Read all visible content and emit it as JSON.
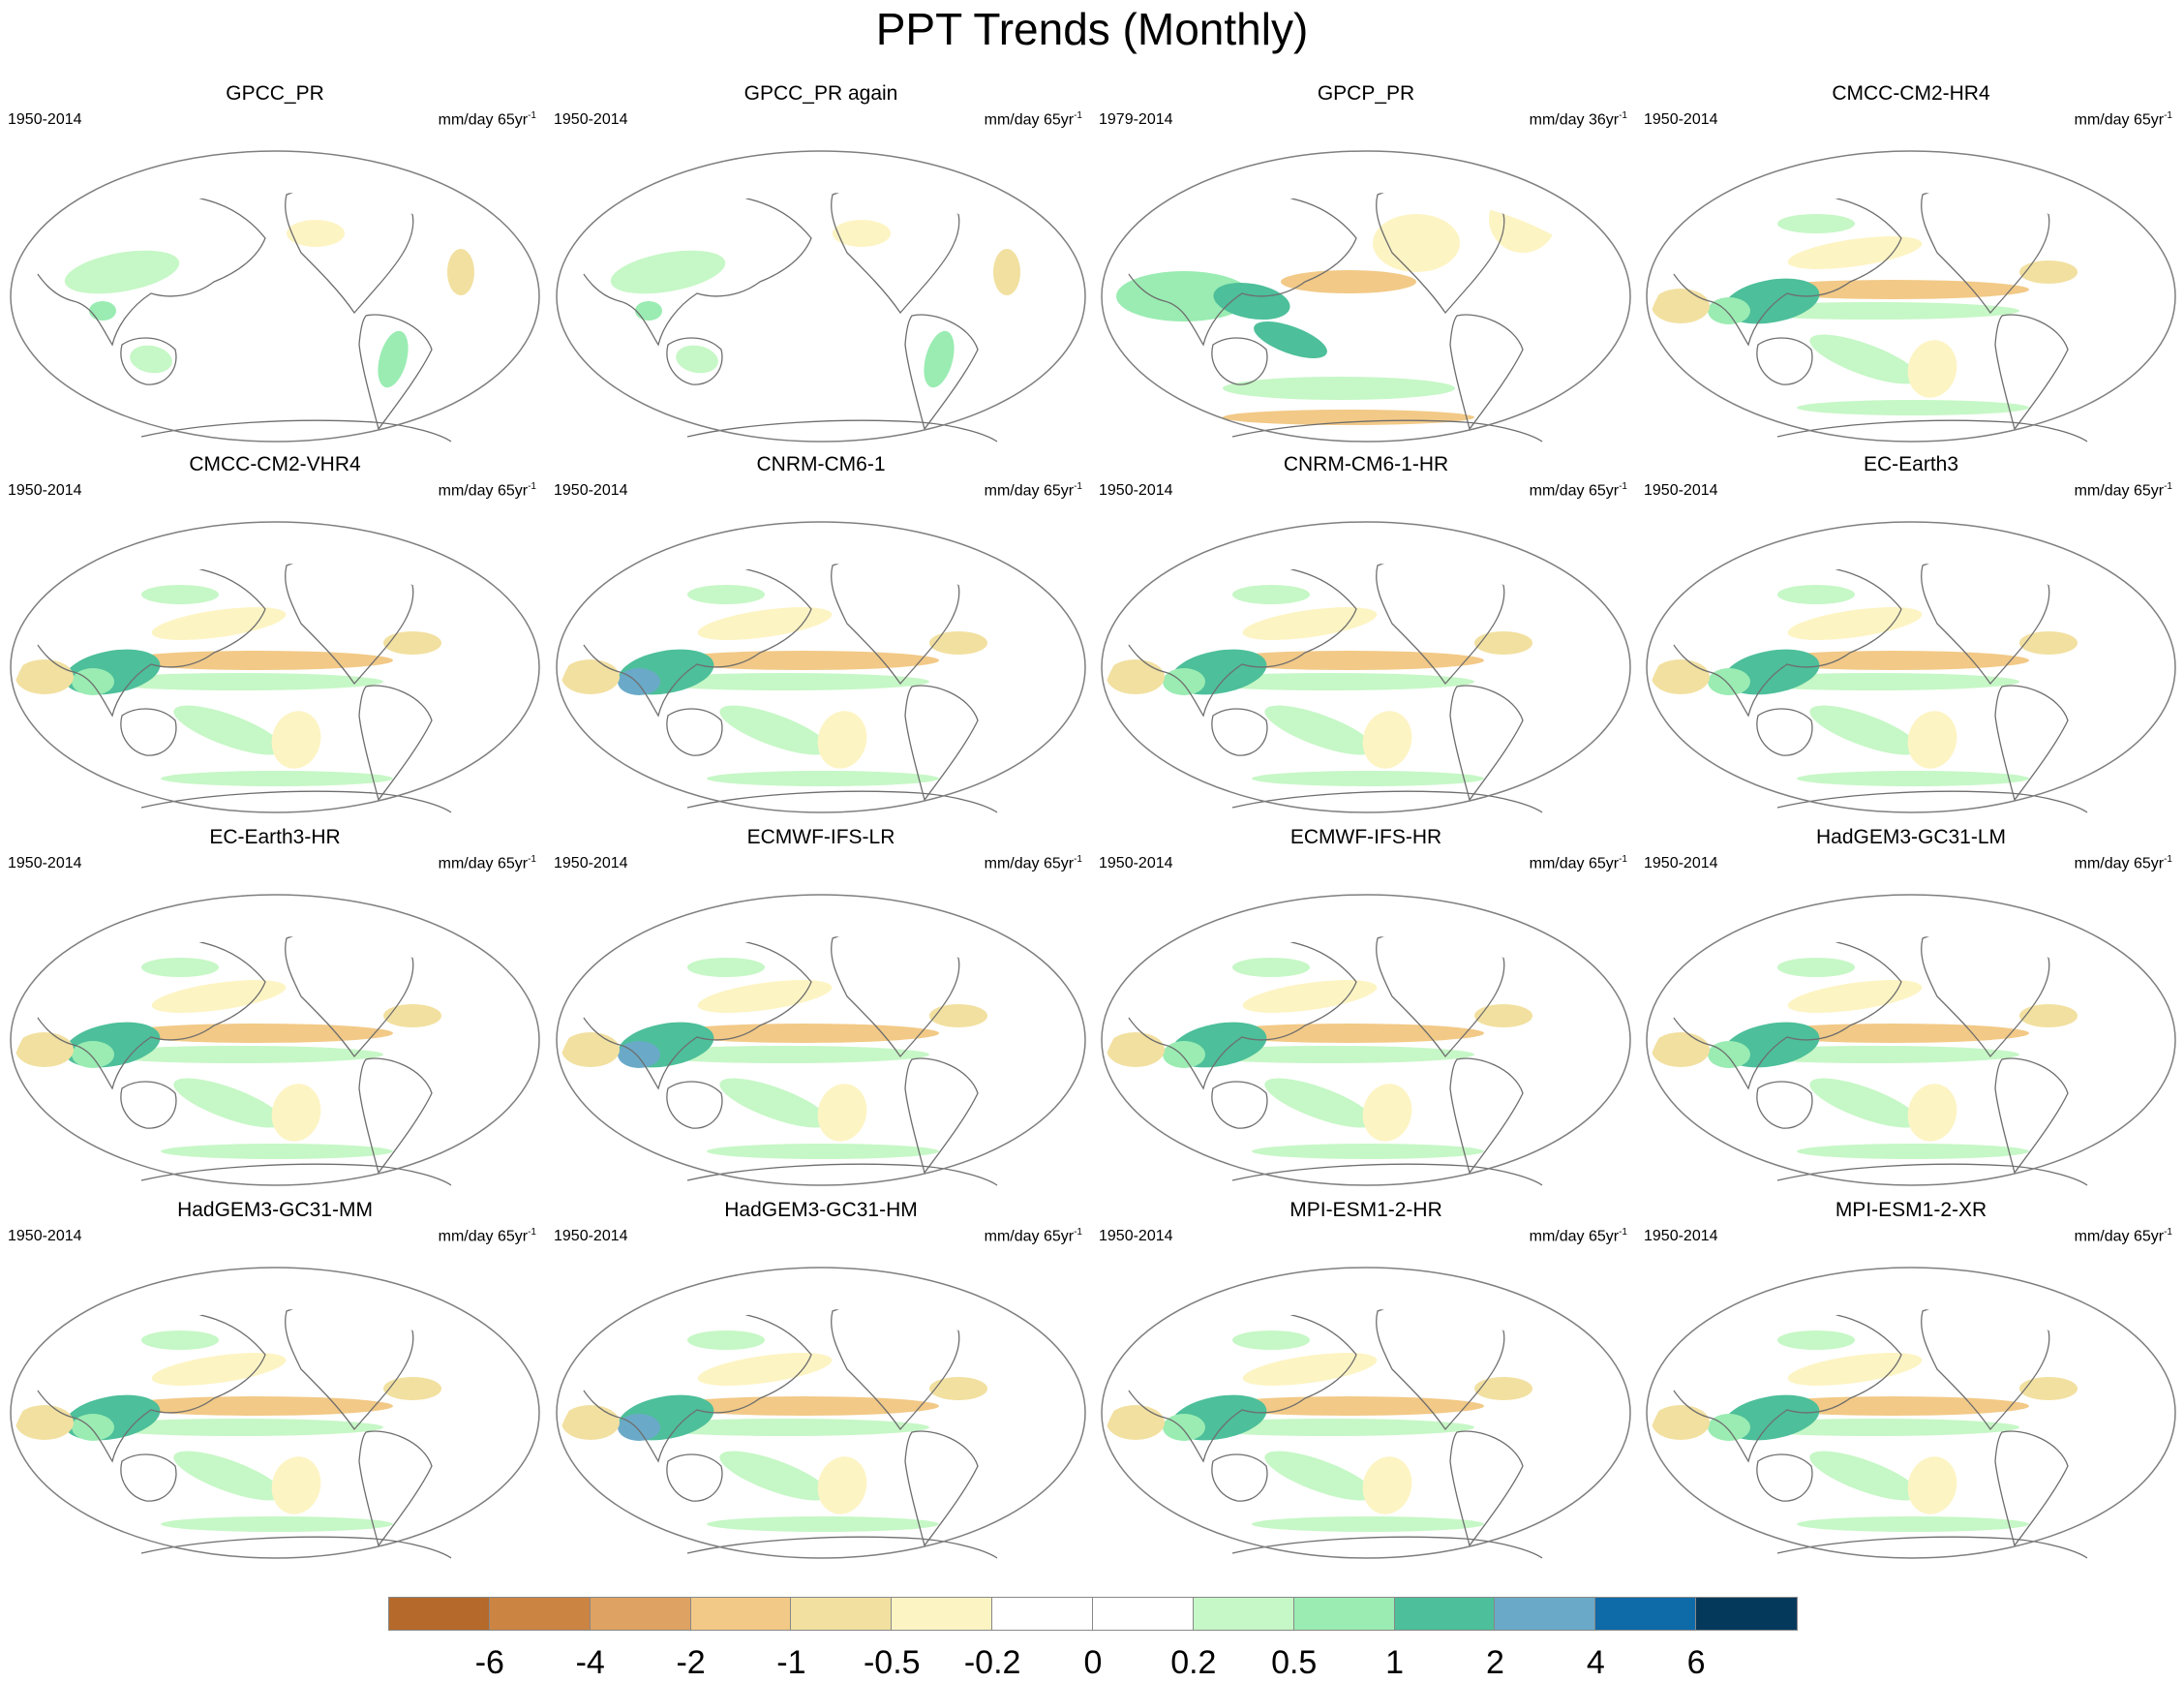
{
  "title": "PPT Trends (Monthly)",
  "panels": [
    {
      "title": "GPCC_PR",
      "period": "1950-2014",
      "units": "mm/day 65yr",
      "units_exp": "-1",
      "pattern": "land"
    },
    {
      "title": "GPCC_PR again",
      "period": "1950-2014",
      "units": "mm/day 65yr",
      "units_exp": "-1",
      "pattern": "land"
    },
    {
      "title": "GPCP_PR",
      "period": "1979-2014",
      "units": "mm/day 36yr",
      "units_exp": "-1",
      "pattern": "obs"
    },
    {
      "title": "CMCC-CM2-HR4",
      "period": "1950-2014",
      "units": "mm/day 65yr",
      "units_exp": "-1",
      "pattern": "model"
    },
    {
      "title": "CMCC-CM2-VHR4",
      "period": "1950-2014",
      "units": "mm/day 65yr",
      "units_exp": "-1",
      "pattern": "model"
    },
    {
      "title": "CNRM-CM6-1",
      "period": "1950-2014",
      "units": "mm/day 65yr",
      "units_exp": "-1",
      "pattern": "model"
    },
    {
      "title": "CNRM-CM6-1-HR",
      "period": "1950-2014",
      "units": "mm/day 65yr",
      "units_exp": "-1",
      "pattern": "model"
    },
    {
      "title": "EC-Earth3",
      "period": "1950-2014",
      "units": "mm/day 65yr",
      "units_exp": "-1",
      "pattern": "model"
    },
    {
      "title": "EC-Earth3-HR",
      "period": "1950-2014",
      "units": "mm/day 65yr",
      "units_exp": "-1",
      "pattern": "model"
    },
    {
      "title": "ECMWF-IFS-LR",
      "period": "1950-2014",
      "units": "mm/day 65yr",
      "units_exp": "-1",
      "pattern": "model"
    },
    {
      "title": "ECMWF-IFS-HR",
      "period": "1950-2014",
      "units": "mm/day 65yr",
      "units_exp": "-1",
      "pattern": "model"
    },
    {
      "title": "HadGEM3-GC31-LM",
      "period": "1950-2014",
      "units": "mm/day 65yr",
      "units_exp": "-1",
      "pattern": "model"
    },
    {
      "title": "HadGEM3-GC31-MM",
      "period": "1950-2014",
      "units": "mm/day 65yr",
      "units_exp": "-1",
      "pattern": "model"
    },
    {
      "title": "HadGEM3-GC31-HM",
      "period": "1950-2014",
      "units": "mm/day 65yr",
      "units_exp": "-1",
      "pattern": "model"
    },
    {
      "title": "MPI-ESM1-2-HR",
      "period": "1950-2014",
      "units": "mm/day 65yr",
      "units_exp": "-1",
      "pattern": "model"
    },
    {
      "title": "MPI-ESM1-2-XR",
      "period": "1950-2014",
      "units": "mm/day 65yr",
      "units_exp": "-1",
      "pattern": "model"
    }
  ],
  "colorbar": {
    "colors": [
      "#b5692a",
      "#cc8443",
      "#dea262",
      "#f2c986",
      "#f2e0a0",
      "#fdf4c4",
      "#ffffff",
      "#ffffff",
      "#c6f7c6",
      "#9aecb2",
      "#4dbf9a",
      "#6aaac8",
      "#0f6aa8",
      "#05395c"
    ],
    "tick_labels": [
      "-6",
      "-4",
      "-2",
      "-1",
      "-0.5",
      "-0.2",
      "0",
      "0.2",
      "0.5",
      "1",
      "2",
      "4",
      "6"
    ]
  },
  "legend": {
    "colors": {
      "coast": "#6e6e6e",
      "border": "#7f7f7f"
    }
  }
}
